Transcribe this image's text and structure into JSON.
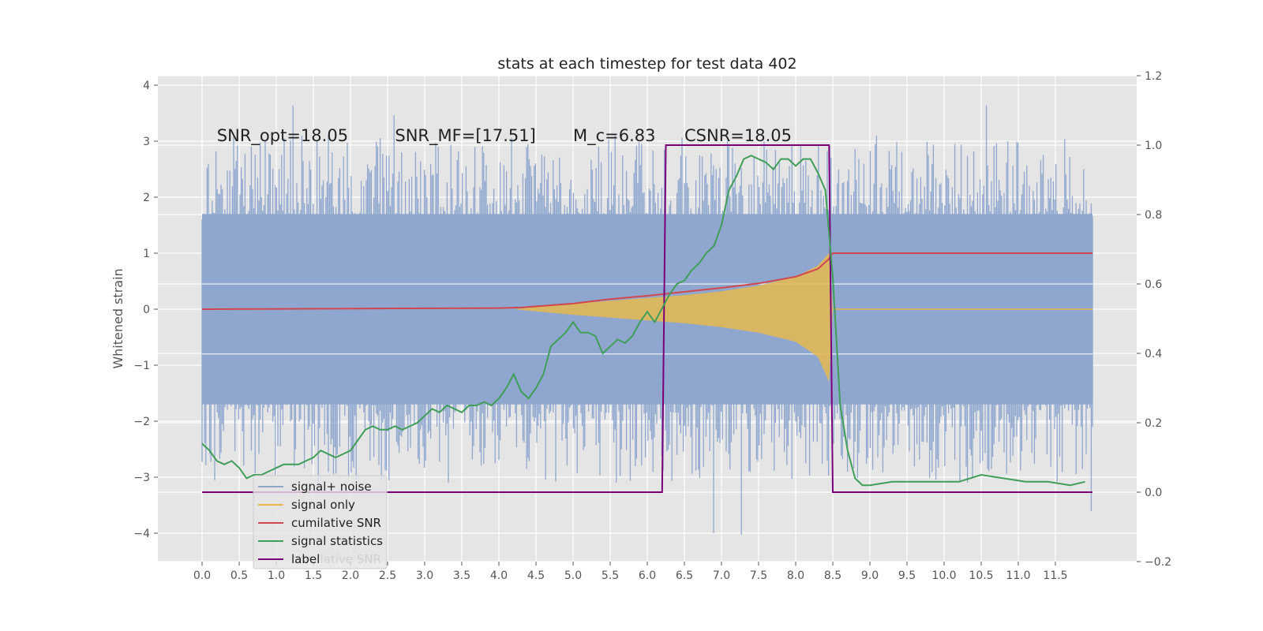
{
  "chart_data": {
    "type": "line",
    "title": "stats at each timestep for test data 402",
    "ylabel": "Whitened strain",
    "ylabel_right": "",
    "xlabel": "",
    "xlim": [
      -0.5,
      12.5
    ],
    "ylim": [
      -4.5,
      4.2
    ],
    "ylim_right": [
      -0.2,
      1.2
    ],
    "x_ticks": [
      "0.0",
      "0.5",
      "1.0",
      "1.5",
      "2.0",
      "2.5",
      "3.0",
      "3.5",
      "4.0",
      "4.5",
      "5.0",
      "5.5",
      "6.0",
      "6.5",
      "7.0",
      "7.5",
      "8.0",
      "8.5",
      "9.0",
      "9.5",
      "10.0",
      "10.5",
      "11.0",
      "11.5"
    ],
    "y_ticks_left": [
      4,
      3,
      2,
      1,
      0,
      -1,
      -2,
      -3,
      -4
    ],
    "y_tick_labels_left": [
      "4",
      "3",
      "2",
      "1",
      "0",
      "−1",
      "−2",
      "−3",
      "−4"
    ],
    "y_ticks_right": [
      1.2,
      1.0,
      0.8,
      0.6,
      0.4,
      0.2,
      0.0,
      -0.2
    ],
    "y_tick_labels_right": [
      "1.2",
      "1.0",
      "0.8",
      "0.6",
      "0.4",
      "0.2",
      "0.0",
      "−0.2"
    ],
    "grid": true,
    "legend_position": "lower-left",
    "annotations": [
      {
        "text": "SNR_opt=18.05",
        "x": 0.2,
        "y": 3.0
      },
      {
        "text": "SNR_MF=[17.51]",
        "x": 2.6,
        "y": 3.0
      },
      {
        "text": "M_c=6.83",
        "x": 5.0,
        "y": 3.0
      },
      {
        "text": "CSNR=18.05",
        "x": 6.5,
        "y": 3.0
      }
    ],
    "series": [
      {
        "name": "signal+ noise",
        "color": "#8fa7cf",
        "axis": "left",
        "kind": "noise",
        "x_range": [
          0.0,
          12.0
        ],
        "band_upper": 1.7,
        "band_lower": -1.7,
        "peak_max": 3.8,
        "peak_min": -4.1
      },
      {
        "name": "signal only",
        "color": "#e6b84d",
        "axis": "left",
        "kind": "chirp-envelope",
        "x": [
          4.2,
          5.0,
          6.0,
          6.5,
          7.0,
          7.5,
          8.0,
          8.3,
          8.45,
          8.5,
          12.0
        ],
        "upper": [
          0.0,
          0.1,
          0.2,
          0.25,
          0.32,
          0.42,
          0.58,
          0.78,
          1.0,
          0.0,
          0.0
        ],
        "lower": [
          0.0,
          -0.1,
          -0.2,
          -0.25,
          -0.32,
          -0.42,
          -0.58,
          -0.85,
          -1.3,
          0.0,
          0.0
        ]
      },
      {
        "name": "cumilative SNR",
        "color": "#d0474e",
        "axis": "left",
        "x": [
          0.0,
          2.0,
          4.0,
          4.3,
          5.0,
          5.5,
          6.0,
          6.5,
          7.0,
          7.5,
          8.0,
          8.3,
          8.45,
          8.5,
          12.0
        ],
        "values": [
          0.0,
          0.01,
          0.02,
          0.03,
          0.1,
          0.18,
          0.24,
          0.31,
          0.38,
          0.46,
          0.58,
          0.72,
          0.9,
          1.0,
          1.0
        ]
      },
      {
        "name": "signal statistics",
        "color": "#3f9e57",
        "axis": "right",
        "x": [
          0.0,
          0.1,
          0.2,
          0.3,
          0.4,
          0.5,
          0.6,
          0.7,
          0.8,
          0.9,
          1.0,
          1.1,
          1.2,
          1.3,
          1.4,
          1.5,
          1.6,
          1.7,
          1.8,
          1.9,
          2.0,
          2.1,
          2.2,
          2.3,
          2.4,
          2.5,
          2.6,
          2.7,
          2.8,
          2.9,
          3.0,
          3.1,
          3.2,
          3.3,
          3.4,
          3.5,
          3.6,
          3.7,
          3.8,
          3.9,
          4.0,
          4.1,
          4.2,
          4.3,
          4.4,
          4.5,
          4.6,
          4.7,
          4.8,
          4.9,
          5.0,
          5.1,
          5.2,
          5.3,
          5.4,
          5.5,
          5.6,
          5.7,
          5.8,
          5.9,
          6.0,
          6.1,
          6.2,
          6.3,
          6.4,
          6.5,
          6.6,
          6.7,
          6.8,
          6.9,
          7.0,
          7.1,
          7.2,
          7.3,
          7.4,
          7.5,
          7.6,
          7.7,
          7.8,
          7.9,
          8.0,
          8.1,
          8.2,
          8.3,
          8.4,
          8.5,
          8.6,
          8.7,
          8.8,
          8.9,
          9.0,
          9.3,
          9.6,
          9.9,
          10.2,
          10.5,
          10.8,
          11.1,
          11.4,
          11.7,
          11.9
        ],
        "values": [
          0.14,
          0.12,
          0.09,
          0.08,
          0.09,
          0.07,
          0.04,
          0.05,
          0.05,
          0.06,
          0.07,
          0.08,
          0.08,
          0.08,
          0.09,
          0.1,
          0.12,
          0.11,
          0.1,
          0.11,
          0.12,
          0.15,
          0.18,
          0.19,
          0.18,
          0.18,
          0.19,
          0.18,
          0.19,
          0.2,
          0.22,
          0.24,
          0.23,
          0.25,
          0.24,
          0.23,
          0.25,
          0.25,
          0.26,
          0.25,
          0.27,
          0.3,
          0.34,
          0.29,
          0.27,
          0.3,
          0.34,
          0.42,
          0.44,
          0.46,
          0.49,
          0.46,
          0.46,
          0.45,
          0.4,
          0.42,
          0.44,
          0.43,
          0.45,
          0.49,
          0.52,
          0.49,
          0.53,
          0.57,
          0.6,
          0.61,
          0.64,
          0.66,
          0.69,
          0.71,
          0.77,
          0.87,
          0.91,
          0.96,
          0.97,
          0.96,
          0.95,
          0.93,
          0.96,
          0.96,
          0.94,
          0.96,
          0.96,
          0.92,
          0.87,
          0.62,
          0.25,
          0.12,
          0.04,
          0.02,
          0.02,
          0.03,
          0.03,
          0.03,
          0.03,
          0.05,
          0.04,
          0.03,
          0.03,
          0.02,
          0.03
        ]
      },
      {
        "name": "label",
        "color": "#7a007a",
        "axis": "right",
        "x": [
          0.0,
          6.2,
          6.25,
          8.45,
          8.5,
          12.0
        ],
        "values": [
          0.0,
          0.0,
          1.0,
          1.0,
          0.0,
          0.0
        ]
      }
    ],
    "legend_overlap_text": "cumilative SNR"
  }
}
